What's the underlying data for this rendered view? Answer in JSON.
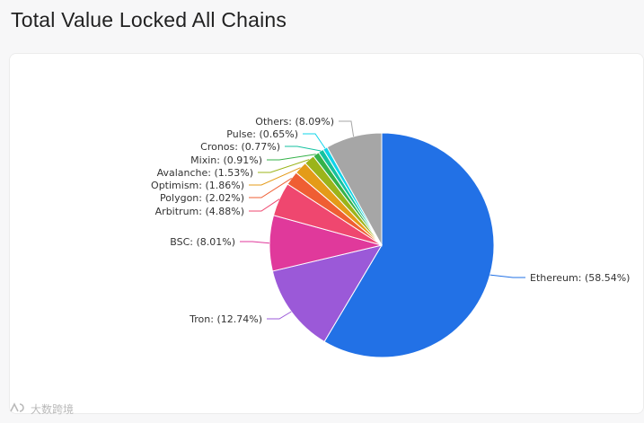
{
  "page": {
    "title": "Total Value Locked All Chains"
  },
  "watermark": {
    "icon": "logo-mark-icon",
    "text": "大数跨境"
  },
  "chart_data": {
    "type": "pie",
    "title": "Total Value Locked All Chains",
    "slices": [
      {
        "label": "Ethereum",
        "value": 58.54,
        "display": "Ethereum: (58.54%)",
        "color": "#2271e6"
      },
      {
        "label": "Tron",
        "value": 12.74,
        "display": "Tron: (12.74%)",
        "color": "#9b59d8"
      },
      {
        "label": "BSC",
        "value": 8.01,
        "display": "BSC: (8.01%)",
        "color": "#e0399b"
      },
      {
        "label": "Arbitrum",
        "value": 4.88,
        "display": "Arbitrum: (4.88%)",
        "color": "#ef476f"
      },
      {
        "label": "Polygon",
        "value": 2.02,
        "display": "Polygon: (2.02%)",
        "color": "#ef5e33"
      },
      {
        "label": "Optimism",
        "value": 1.86,
        "display": "Optimism: (1.86%)",
        "color": "#e49b18"
      },
      {
        "label": "Avalanche",
        "value": 1.53,
        "display": "Avalanche: (1.53%)",
        "color": "#9bb41a"
      },
      {
        "label": "Mixin",
        "value": 0.91,
        "display": "Mixin: (0.91%)",
        "color": "#36b24a"
      },
      {
        "label": "Cronos",
        "value": 0.77,
        "display": "Cronos: (0.77%)",
        "color": "#15c2a0"
      },
      {
        "label": "Pulse",
        "value": 0.65,
        "display": "Pulse: (0.65%)",
        "color": "#0fd4ea"
      },
      {
        "label": "Others",
        "value": 8.09,
        "display": "Others: (8.09%)",
        "color": "#a6a6a6"
      }
    ]
  }
}
